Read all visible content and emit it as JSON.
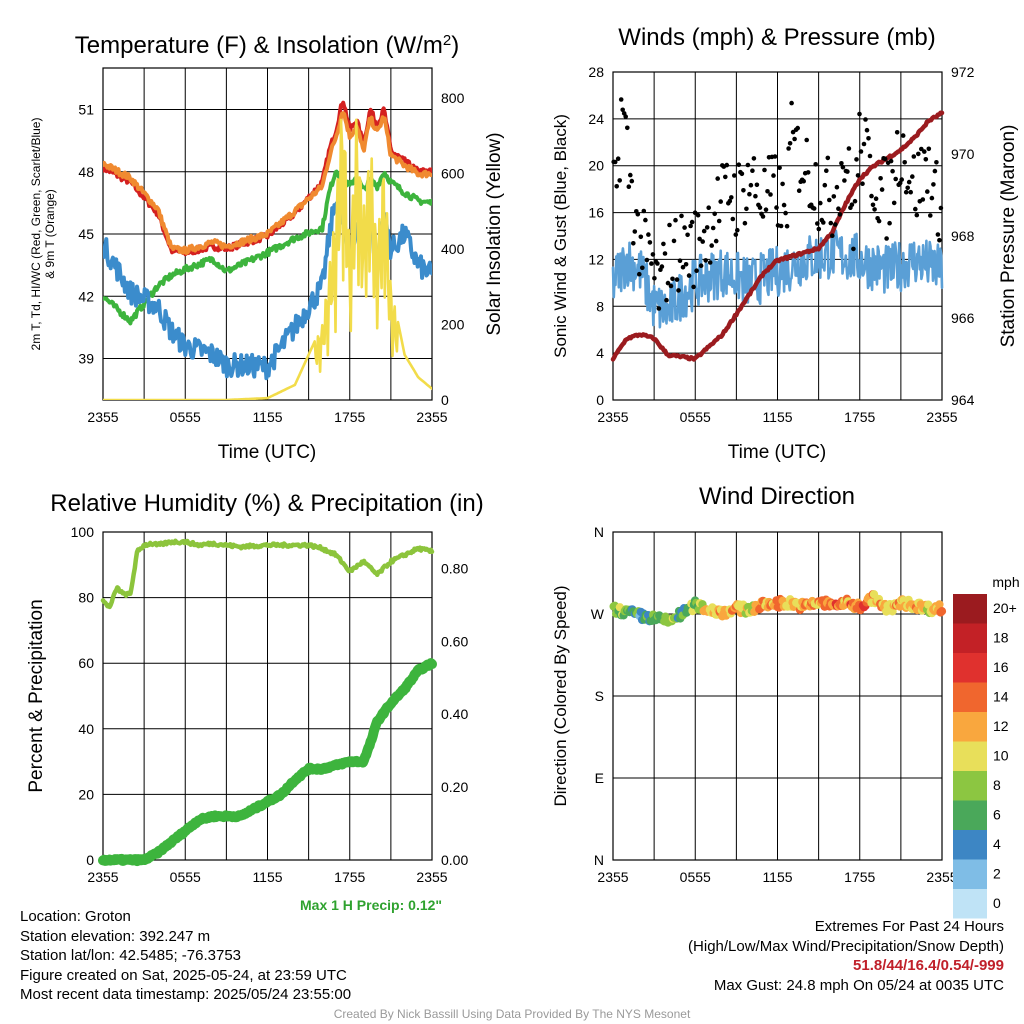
{
  "panels": {
    "temp": {
      "title": "Temperature (F) & Insolation (W/m²)",
      "ylabel_left": "2m T, Td, HI/WC (Red, Green, Scarlet/Blue) & 9m T (Orange)",
      "ylabel_right": "Solar Insolation (Yellow)",
      "xlabel": "Time (UTC)"
    },
    "winds": {
      "title": "Winds (mph) & Pressure (mb)",
      "ylabel_left": "Sonic Wind & Gust (Blue, Black)",
      "ylabel_right": "Station Pressure (Maroon)",
      "xlabel": "Time (UTC)"
    },
    "rh": {
      "title": "Relative Humidity (%) & Precipitation (in)",
      "ylabel_left": "Percent & Precipitation",
      "max_precip": "Max 1 H Precip: 0.12\""
    },
    "wdir": {
      "title": "Wind Direction",
      "ylabel_left": "Direction (Colored By Speed)",
      "colorbar_title": "mph",
      "colorbar_labels": [
        "20+",
        "18",
        "16",
        "14",
        "12",
        "10",
        "8",
        "6",
        "4",
        "2",
        "0"
      ],
      "colorbar_colors": [
        "#9b1b1f",
        "#c32126",
        "#e0312e",
        "#f0662e",
        "#f9a73e",
        "#e8df5a",
        "#8cc641",
        "#4aa85a",
        "#3d86c4",
        "#7fbde6",
        "#bfe3f6"
      ]
    }
  },
  "info": {
    "location": "Location: Groton",
    "elevation": "Station elevation: 392.247 m",
    "latlon": "Station lat/lon: 42.5485; -76.3753",
    "created": "Figure created on Sat, 2025-05-24, at 23:59 UTC",
    "recent": "Most recent data timestamp: 2025/05/24 23:55:00",
    "extremes_title": "Extremes For Past 24 Hours",
    "extremes_sub": "(High/Low/Max Wind/Precipitation/Snow Depth)",
    "extremes_values": "51.8/44/16.4/0.54/-999",
    "max_gust": "Max Gust: 24.8 mph On 05/24 at 0035 UTC"
  },
  "footer": "Created By Nick Bassill Using Data Provided By The NYS Mesonet",
  "chart_data": [
    {
      "type": "line",
      "title": "Temperature (F) & Insolation (W/m2)",
      "xlabel": "Time (UTC)",
      "ylabel": "2m T, Td, HI/WC (Red, Green, Scarlet/Blue) & 9m T (Orange)",
      "ylabel_right": "Solar Insolation (Yellow)",
      "x_ticks": [
        "2355",
        "0555",
        "1155",
        "1755",
        "2355"
      ],
      "x_hours": [
        0,
        2,
        4,
        5,
        6,
        8,
        9,
        12,
        14,
        16,
        16.5,
        17,
        17.5,
        18,
        18.5,
        19,
        19.5,
        20,
        20.5,
        21,
        22,
        23,
        24
      ],
      "ylim": [
        37,
        53
      ],
      "yticks": [
        39,
        42,
        45,
        48,
        51
      ],
      "ylim_right": [
        0,
        880
      ],
      "yticks_right": [
        0,
        200,
        400,
        600,
        800
      ],
      "series": [
        {
          "name": "2m T",
          "color": "#d42020",
          "values": [
            48.2,
            47.5,
            46,
            44.2,
            44.1,
            44.4,
            44.3,
            44.9,
            46,
            47.5,
            49,
            50,
            51.5,
            50,
            50.5,
            49.3,
            51,
            50.2,
            51,
            49,
            48.5,
            48,
            48
          ]
        },
        {
          "name": "9m T",
          "color": "#f08a30",
          "values": [
            48.4,
            47.7,
            46.2,
            44.3,
            44.2,
            44.6,
            44.4,
            45,
            46.1,
            47.3,
            48.7,
            49.7,
            51,
            49.7,
            50.2,
            49,
            50.6,
            49.9,
            50.7,
            48.8,
            48.3,
            47.9,
            47.9
          ]
        },
        {
          "name": "Td",
          "color": "#3db43d",
          "values": [
            42,
            40.8,
            42.5,
            43,
            43.3,
            43.8,
            43.2,
            44.1,
            44.8,
            45.3,
            47,
            48.1,
            47.6,
            47.3,
            47.8,
            47.1,
            47.6,
            47.3,
            48,
            47.5,
            47,
            46.6,
            46.5
          ]
        },
        {
          "name": "HI/WC",
          "color": "#3b8ccc",
          "values": [
            44.5,
            42.2,
            41.5,
            40.3,
            39.6,
            39.2,
            38.7,
            38.6,
            40.5,
            42.5,
            44.8,
            46.9,
            45.3,
            43.8,
            45.2,
            44.1,
            45.6,
            43.5,
            46,
            44.2,
            45,
            43.5,
            43
          ]
        },
        {
          "name": "Solar Insolation",
          "color": "#f2dc4a",
          "axis": "right",
          "values": [
            0,
            0,
            0,
            0,
            0,
            0,
            0,
            5,
            40,
            200,
            350,
            520,
            840,
            380,
            760,
            500,
            700,
            400,
            650,
            300,
            120,
            60,
            30
          ]
        }
      ]
    },
    {
      "type": "line",
      "title": "Winds (mph) & Pressure (mb)",
      "xlabel": "Time (UTC)",
      "ylabel": "Sonic Wind & Gust (Blue, Black)",
      "ylabel_right": "Station Pressure (Maroon)",
      "x_ticks": [
        "2355",
        "0555",
        "1155",
        "1755",
        "2355"
      ],
      "ylim": [
        0,
        28
      ],
      "yticks": [
        0,
        4,
        8,
        12,
        16,
        20,
        24,
        28
      ],
      "ylim_right": [
        964,
        972
      ],
      "yticks_right": [
        964,
        966,
        968,
        970,
        972
      ],
      "series": [
        {
          "name": "Sonic Wind",
          "color": "#5a9fd6",
          "x_hours": [
            0,
            1,
            2,
            3,
            4,
            5,
            6,
            8,
            10,
            12,
            14,
            16,
            18,
            20,
            22,
            24
          ],
          "values": [
            10,
            12,
            11,
            8,
            7.5,
            9,
            10,
            11,
            10,
            11,
            12,
            12.5,
            12,
            11,
            12,
            11
          ]
        },
        {
          "name": "Gust",
          "color": "#000000",
          "type": "scatter",
          "x_hours": [
            0.1,
            0.4,
            0.6,
            0.9,
            1.2,
            1.8,
            2.5,
            3,
            3.4,
            4,
            4.6,
            5.2,
            6,
            6.5,
            7,
            7.5,
            8,
            8.5,
            9,
            10,
            11,
            12,
            12.5,
            13,
            14,
            15,
            16,
            17,
            17.5,
            18,
            19,
            20,
            21,
            22,
            23,
            23.5
          ],
          "values": [
            17,
            20,
            24.8,
            23,
            19,
            14,
            12,
            11,
            9,
            12,
            12.5,
            13,
            13,
            14,
            15,
            16,
            17,
            18,
            17,
            19,
            17,
            18,
            15,
            22,
            20,
            18,
            17,
            21,
            15,
            22,
            19,
            17,
            22,
            18,
            20,
            17
          ]
        },
        {
          "name": "Station Pressure",
          "color": "#9b1b1f",
          "axis": "right",
          "x_hours": [
            0,
            1,
            2,
            3,
            4,
            5,
            6,
            7,
            8,
            9,
            10,
            11,
            12,
            13,
            14,
            15,
            16,
            17,
            18,
            19,
            20,
            21,
            22,
            23,
            24
          ],
          "values": [
            965,
            965.5,
            965.6,
            965.5,
            965.1,
            965.05,
            965,
            965.3,
            965.6,
            966.1,
            966.6,
            967.1,
            967.4,
            967.5,
            967.6,
            967.7,
            968.1,
            968.8,
            969.4,
            969.7,
            969.9,
            970.1,
            970.4,
            970.8,
            971
          ]
        }
      ]
    },
    {
      "type": "line",
      "title": "Relative Humidity (%) & Precipitation (in)",
      "ylabel": "Percent & Precipitation",
      "x_ticks": [
        "2355",
        "0555",
        "1155",
        "1755",
        "2355"
      ],
      "ylim": [
        0,
        100
      ],
      "yticks": [
        0,
        20,
        40,
        60,
        80,
        100
      ],
      "ylim_right": [
        0,
        0.9
      ],
      "yticks_right": [
        "0.00",
        "0.20",
        "0.40",
        "0.60",
        "0.80"
      ],
      "series": [
        {
          "name": "Relative Humidity",
          "color": "#8cc43c",
          "x_hours": [
            0,
            0.5,
            1,
            1.5,
            2,
            2.5,
            3,
            3.5,
            4,
            5,
            6,
            7,
            8,
            9,
            10,
            12,
            14,
            15,
            16,
            17,
            18,
            19,
            20,
            21,
            22,
            23,
            24
          ],
          "values": [
            79,
            77,
            83,
            81,
            81,
            94,
            96,
            96.5,
            96,
            97,
            97,
            96,
            96.5,
            96,
            95.5,
            96,
            96,
            96,
            95,
            93,
            88,
            91,
            87,
            91,
            93,
            95,
            94
          ]
        },
        {
          "name": "Precipitation",
          "color": "#3db43d",
          "axis": "right",
          "x_hours": [
            0,
            1,
            2,
            3,
            4,
            5,
            6,
            7,
            8,
            9,
            10,
            11,
            12,
            13,
            14,
            15,
            16,
            17,
            18,
            19,
            19.5,
            20,
            21,
            22,
            23,
            24
          ],
          "values": [
            0,
            0,
            0,
            0,
            0.02,
            0.05,
            0.08,
            0.11,
            0.12,
            0.12,
            0.12,
            0.14,
            0.16,
            0.18,
            0.22,
            0.25,
            0.25,
            0.26,
            0.27,
            0.27,
            0.32,
            0.38,
            0.43,
            0.47,
            0.52,
            0.54
          ]
        }
      ]
    },
    {
      "type": "scatter",
      "title": "Wind Direction",
      "ylabel": "Direction (Colored By Speed)",
      "x_ticks": [
        "2355",
        "0555",
        "1155",
        "1755",
        "2355"
      ],
      "yticks": [
        "N",
        "E",
        "S",
        "W",
        "N"
      ],
      "colorbar": "mph",
      "series": [
        {
          "name": "Wind Direction",
          "x_hours": [
            0,
            1,
            2,
            3,
            4,
            5,
            6,
            7,
            8,
            9,
            10,
            11,
            12,
            13,
            14,
            15,
            16,
            17,
            18,
            19,
            20,
            21,
            22,
            23,
            24
          ],
          "direction_deg": [
            275,
            272,
            268,
            265,
            262,
            270,
            280,
            275,
            272,
            276,
            275,
            280,
            282,
            282,
            278,
            283,
            280,
            282,
            278,
            288,
            275,
            282,
            280,
            276,
            276
          ],
          "speed_mph": [
            9,
            8,
            5,
            7,
            8,
            6,
            8,
            11,
            11,
            12,
            10,
            12,
            13,
            11,
            12,
            12,
            14,
            12,
            16,
            12,
            10,
            12,
            11,
            10,
            12
          ]
        }
      ]
    }
  ]
}
